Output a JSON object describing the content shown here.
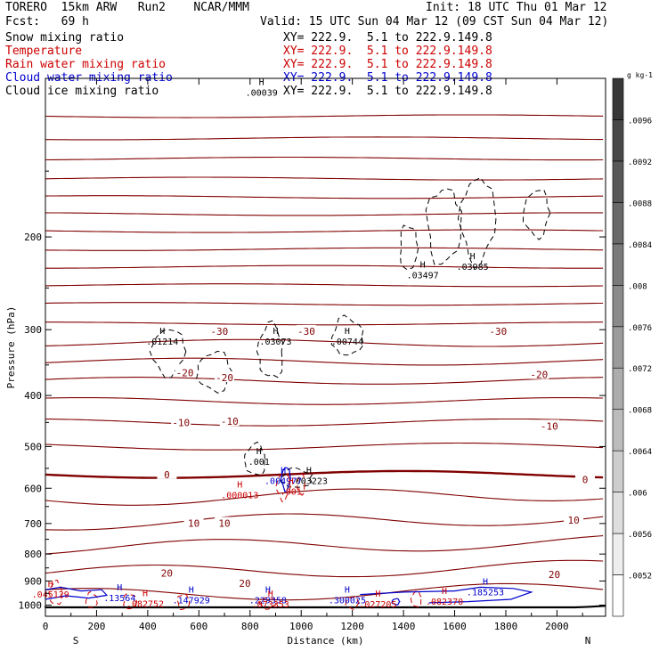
{
  "header": {
    "model": "TORERO  15km ARW   Run2    NCAR/MMM",
    "init": "Init: 18 UTC Thu 01 Mar 12",
    "fcst": "Fcst:   69 h",
    "valid": "Valid: 15 UTC Sun 04 Mar 12 (09 CST Sun 04 Mar 12)"
  },
  "legend": [
    {
      "name": "Snow mixing ratio",
      "xy": "XY= 222.9.  5.1 to 222.9.149.8",
      "color": "#000000"
    },
    {
      "name": "Temperature",
      "xy": "XY= 222.9.  5.1 to 222.9.149.8",
      "color": "#cc0000"
    },
    {
      "name": "Rain water mixing ratio",
      "xy": "XY= 222.9.  5.1 to 222.9.149.8",
      "color": "#cc0000"
    },
    {
      "name": "Cloud water mixing ratio",
      "xy": "XY= 222.9.  5.1 to 222.9.149.8",
      "color": "#0000cc"
    },
    {
      "name": "Cloud ice mixing ratio",
      "xy": "XY= 222.9.  5.1 to 222.9.149.8",
      "color": "#000000"
    }
  ],
  "chart_data": {
    "type": "contour",
    "xlabel": "Distance (km)",
    "ylabel": "Pressure (hPa)",
    "xlim": [
      0,
      2190
    ],
    "ylim": [
      100,
      1050
    ],
    "x_ticks": [
      0,
      200,
      400,
      600,
      800,
      1000,
      1200,
      1400,
      1600,
      1800,
      2000
    ],
    "y_ticks": [
      200,
      300,
      400,
      500,
      600,
      700,
      800,
      900,
      1000
    ],
    "y_scale": "log",
    "left_end": "S",
    "right_end": "N",
    "colorbar": {
      "unit": "g kg-1",
      "labels": [
        ".0052",
        ".0056",
        ".006",
        ".0064",
        ".0068",
        ".0072",
        ".0076",
        ".008",
        ".0084",
        ".0088",
        ".0092",
        ".0096"
      ]
    },
    "temperature_labels": [
      {
        "text": "-30",
        "x": 680,
        "p": 302
      },
      {
        "text": "-30",
        "x": 1020,
        "p": 302
      },
      {
        "text": "-30",
        "x": 1770,
        "p": 302
      },
      {
        "text": "-20",
        "x": 545,
        "p": 362
      },
      {
        "text": "-20",
        "x": 700,
        "p": 370
      },
      {
        "text": "-20",
        "x": 1930,
        "p": 365
      },
      {
        "text": "-10",
        "x": 530,
        "p": 450
      },
      {
        "text": "-10",
        "x": 720,
        "p": 448
      },
      {
        "text": "-10",
        "x": 1970,
        "p": 457
      },
      {
        "text": "0",
        "x": 475,
        "p": 565
      },
      {
        "text": "0",
        "x": 2110,
        "p": 578
      },
      {
        "text": "10",
        "x": 580,
        "p": 699
      },
      {
        "text": "10",
        "x": 700,
        "p": 699
      },
      {
        "text": "10",
        "x": 2065,
        "p": 690
      },
      {
        "text": "20",
        "x": 475,
        "p": 870
      },
      {
        "text": "20",
        "x": 780,
        "p": 910
      },
      {
        "text": "20",
        "x": 1990,
        "p": 875
      }
    ],
    "maxima": [
      {
        "label": ".00039",
        "x": 845,
        "p": 107,
        "color": "#000000"
      },
      {
        "label": ".01214",
        "x": 457,
        "p": 318,
        "color": "#000000"
      },
      {
        "label": ".03073",
        "x": 900,
        "p": 318,
        "color": "#000000"
      },
      {
        "label": ".00744",
        "x": 1180,
        "p": 318,
        "color": "#000000"
      },
      {
        "label": ".03497",
        "x": 1475,
        "p": 238,
        "color": "#000000"
      },
      {
        "label": ".03985",
        "x": 1670,
        "p": 229,
        "color": "#000000"
      },
      {
        "label": ".001",
        "x": 835,
        "p": 538,
        "color": "#000000"
      },
      {
        "label": ".003223",
        "x": 1030,
        "p": 585,
        "color": "#000000"
      },
      {
        "label": ".004977",
        "x": 930,
        "p": 585,
        "color": "#0000cc"
      },
      {
        "label": ".001",
        "x": 960,
        "p": 612,
        "color": "#cc0000"
      },
      {
        "label": ".000013",
        "x": 760,
        "p": 622,
        "color": "#cc0000"
      },
      {
        "label": ".045129",
        "x": 20,
        "p": 960,
        "color": "#cc0000"
      },
      {
        "label": ".13564",
        "x": 290,
        "p": 975,
        "color": "#0000cc"
      },
      {
        "label": ".082752",
        "x": 390,
        "p": 1000,
        "color": "#cc0000"
      },
      {
        "label": ".147929",
        "x": 570,
        "p": 985,
        "color": "#0000cc"
      },
      {
        "label": ".229358",
        "x": 870,
        "p": 985,
        "color": "#0000cc"
      },
      {
        "label": ".073353",
        "x": 880,
        "p": 1002,
        "color": "#cc0000"
      },
      {
        "label": ".300025",
        "x": 1180,
        "p": 985,
        "color": "#0000cc"
      },
      {
        "label": ".027205",
        "x": 1300,
        "p": 1002,
        "color": "#cc0000"
      },
      {
        "label": ".082370",
        "x": 1560,
        "p": 990,
        "color": "#cc0000"
      },
      {
        "label": ".185253",
        "x": 1720,
        "p": 950,
        "color": "#0000cc"
      }
    ]
  }
}
